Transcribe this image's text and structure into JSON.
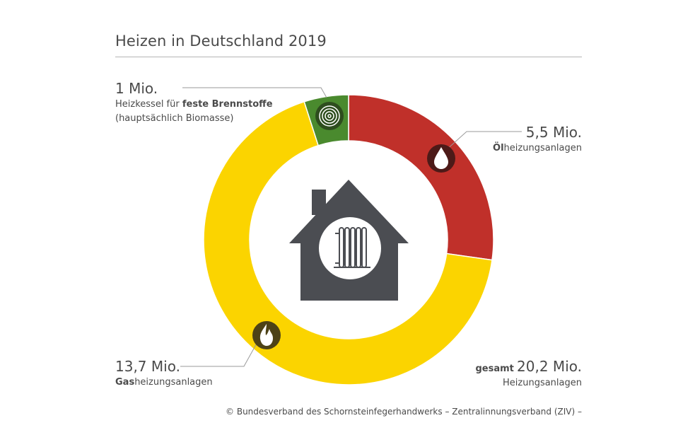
{
  "title": "Heizen in Deutschland 2019",
  "chart_data": {
    "type": "pie",
    "title": "Heizen in Deutschland 2019",
    "unit": "Mio.",
    "slices": [
      {
        "value": 5.5,
        "value_label": "5,5 Mio.",
        "label_bold": "Öl",
        "label_rest": "heizungsanlagen",
        "color": "#c0302a",
        "icon": "oil-drop-icon"
      },
      {
        "value": 13.7,
        "value_label": "13,7 Mio.",
        "label_bold": "Gas",
        "label_rest": "heizungsanlagen",
        "color": "#fbd400",
        "icon": "gas-flame-icon"
      },
      {
        "value": 1.0,
        "value_label": "1 Mio.",
        "label_pre": "Heizkessel für ",
        "label_bold": "feste Brennstoffe",
        "label_line2": "(hauptsächlich Biomasse)",
        "color": "#4a8a2e",
        "icon": "wood-log-icon"
      }
    ],
    "total": {
      "prefix": "gesamt",
      "value": 20.2,
      "value_label": "20,2 Mio.",
      "label": "Heizungsanlagen"
    },
    "center_icon": "house-heating-icon"
  },
  "footer": "© Bundesverband des Schornsteinfegerhandwerks – Zentralinnungsverband (ZIV) –"
}
